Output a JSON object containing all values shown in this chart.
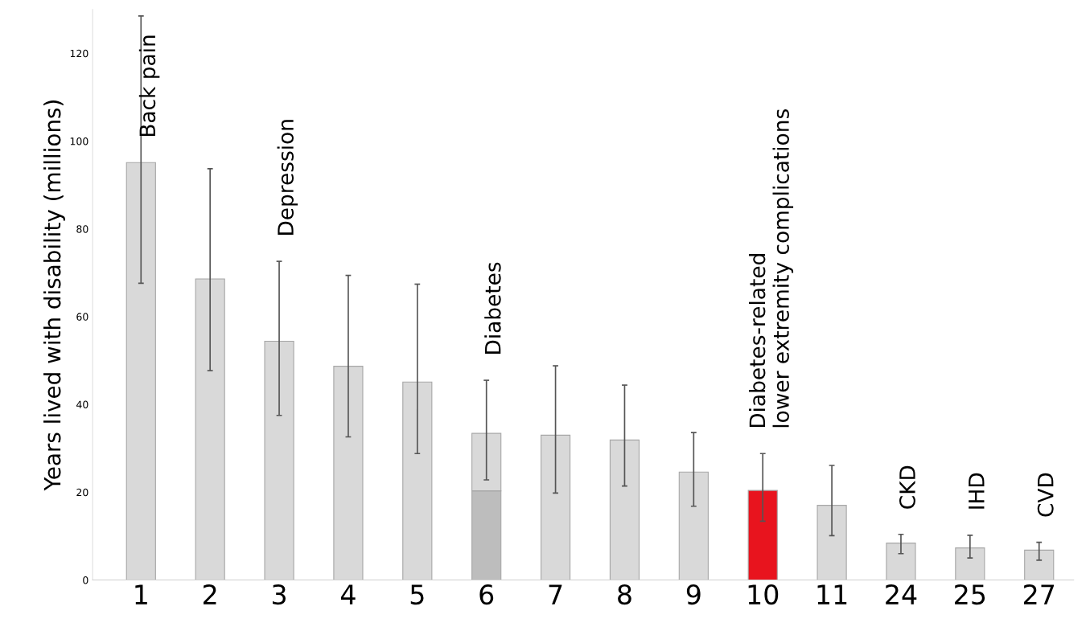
{
  "chart_data": {
    "type": "bar",
    "stacked": true,
    "ylabel": "Years lived with disability (millions)",
    "categories": [
      "1",
      "2",
      "3",
      "4",
      "5",
      "6",
      "7",
      "8",
      "9",
      "10",
      "11",
      "24",
      "25",
      "27"
    ],
    "series": [
      {
        "colors": [
          "#d9d9d9",
          "#d9d9d9",
          "#d9d9d9",
          "#d9d9d9",
          "#d9d9d9",
          "#bdbdbd",
          "#d9d9d9",
          "#d9d9d9",
          "#d9d9d9",
          "#e8141e",
          "#d9d9d9",
          "#d9d9d9",
          "#d9d9d9",
          "#d9d9d9"
        ],
        "values": [
          95.1,
          68.6,
          54.4,
          48.7,
          45.1,
          20.3,
          33.0,
          31.9,
          24.6,
          20.4,
          17.0,
          8.4,
          7.3,
          6.8
        ],
        "errors": [
          [
            67.6,
            128.5
          ],
          [
            47.7,
            93.7
          ],
          [
            37.5,
            72.6
          ],
          [
            32.6,
            69.4
          ],
          [
            28.8,
            67.4
          ],
          null,
          [
            19.8,
            48.8
          ],
          [
            21.4,
            44.4
          ],
          [
            16.8,
            33.6
          ],
          [
            13.4,
            28.8
          ],
          [
            10.1,
            26.1
          ],
          [
            6.0,
            10.4
          ],
          [
            5.0,
            10.2
          ],
          [
            4.5,
            8.6
          ]
        ]
      },
      {
        "color": "#d9d9d9",
        "values": [
          null,
          null,
          null,
          null,
          null,
          13.1,
          null,
          null,
          null,
          null,
          null,
          null,
          null,
          null
        ],
        "errors": [
          null,
          null,
          null,
          null,
          null,
          [
            22.8,
            45.5
          ],
          null,
          null,
          null,
          null,
          null,
          null,
          null,
          null
        ]
      }
    ],
    "annotations": [
      {
        "text": "Back pain",
        "x": "1",
        "y": 95.1
      },
      {
        "text": "Depression",
        "x": "3",
        "y": 72.6
      },
      {
        "text": "Diabetes",
        "x": "6",
        "y": 45.5
      },
      {
        "text": "Diabetes-related\nlower extremity complications",
        "x": "10",
        "y": 28.8
      },
      {
        "text": "CKD",
        "x": "24",
        "y": 10.4
      },
      {
        "text": "IHD",
        "x": "25",
        "y": 10.2
      },
      {
        "text": "CVD",
        "x": "27",
        "y": 8.6
      }
    ],
    "ylim": [
      0,
      130
    ],
    "yticks": [
      0,
      20,
      40,
      60,
      80,
      100,
      120
    ],
    "grid": false,
    "legend": false
  }
}
